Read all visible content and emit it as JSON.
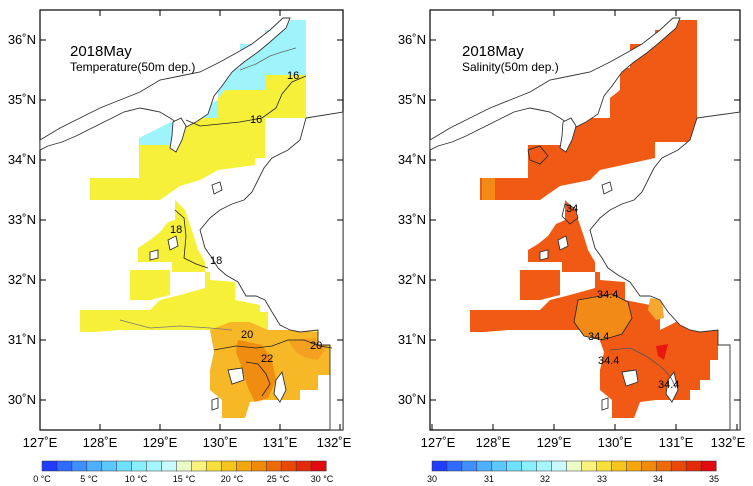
{
  "panels": [
    {
      "id": "temperature",
      "title": "2018May",
      "subtitle": "Temperature(50m dep.)",
      "x_ticks": [
        "127˚E",
        "128˚E",
        "129˚E",
        "130˚E",
        "131˚E",
        "132˚E"
      ],
      "y_ticks": [
        "30˚N",
        "31˚N",
        "32˚N",
        "33˚N",
        "34˚N",
        "35˚N",
        "36˚N"
      ],
      "contour_labels": [
        "16",
        "16",
        "18",
        "18",
        "20",
        "22",
        "20"
      ],
      "colorbar_ticks": [
        "0 °C",
        "5 °C",
        "10 °C",
        "15 °C",
        "20 °C",
        "25 °C",
        "30 °C"
      ],
      "colorbar_colors": [
        "#1f3cff",
        "#2f6bff",
        "#3f8fff",
        "#4fb0ff",
        "#5cc8ff",
        "#6fe0ff",
        "#8af0ff",
        "#a6f6ff",
        "#c8faff",
        "#eafcc8",
        "#faf27a",
        "#f8e03c",
        "#f6c51c",
        "#f4a60e",
        "#f08a0a",
        "#ec6a08",
        "#e84a06",
        "#e42a06",
        "#e00a10"
      ]
    },
    {
      "id": "salinity",
      "title": "2018May",
      "subtitle": "Salinity(50m dep.)",
      "x_ticks": [
        "127˚E",
        "128˚E",
        "129˚E",
        "130˚E",
        "131˚E",
        "132˚E"
      ],
      "y_ticks": [
        "30˚N",
        "31˚N",
        "32˚N",
        "33˚N",
        "34˚N",
        "35˚N",
        "36˚N"
      ],
      "contour_labels": [
        "34",
        "34.4",
        "34.4",
        "34.4",
        "34.4"
      ],
      "colorbar_ticks": [
        "30",
        "31",
        "32",
        "33",
        "34",
        "35"
      ],
      "colorbar_colors": [
        "#1f3cff",
        "#2f6bff",
        "#3f8fff",
        "#4fb0ff",
        "#5cc8ff",
        "#6fe0ff",
        "#8af0ff",
        "#a6f6ff",
        "#c8faff",
        "#eafcc8",
        "#faf27a",
        "#f8e03c",
        "#f6c51c",
        "#f4a60e",
        "#f08a0a",
        "#ec6a08",
        "#e84a06",
        "#e42a06",
        "#e00a10"
      ]
    }
  ],
  "colors": {
    "warm_yellow": "#f7f038",
    "cool_cyan": "#9ff4fb",
    "orange_light": "#f6b826",
    "orange_mid": "#f08c10",
    "salinity_main": "#f05a14",
    "salinity_alt": "#f28a18",
    "salinity_high": "#e81810",
    "salinity_low": "#f6a832"
  }
}
